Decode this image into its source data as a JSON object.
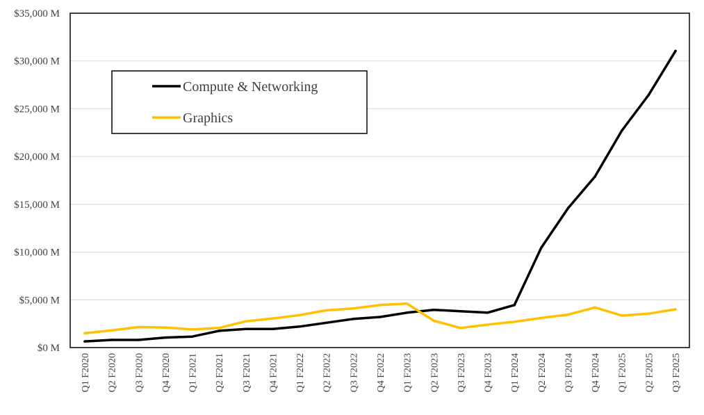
{
  "chart_data": {
    "type": "line",
    "title": "",
    "xlabel": "",
    "ylabel": "",
    "ylim": [
      0,
      35000
    ],
    "y_ticks": [
      0,
      5000,
      10000,
      15000,
      20000,
      25000,
      30000,
      35000
    ],
    "y_tick_labels": [
      "$0 M",
      "$5,000 M",
      "$10,000 M",
      "$15,000 M",
      "$20,000 M",
      "$25,000 M",
      "$30,000 M",
      "$35,000 M"
    ],
    "grid": "horizontal",
    "legend_position": "top-left",
    "categories": [
      "Q1 F2020",
      "Q2 F2020",
      "Q3 F2020",
      "Q4 F2020",
      "Q1 F2021",
      "Q2 F2021",
      "Q3 F2021",
      "Q4 F2021",
      "Q1 F2022",
      "Q2 F2022",
      "Q3 F2022",
      "Q4 F2022",
      "Q1 F2023",
      "Q2 F2023",
      "Q3 F2023",
      "Q4 F2023",
      "Q1 F2024",
      "Q2 F2024",
      "Q3 F2024",
      "Q4 F2024",
      "Q1 F2025",
      "Q2 F2025",
      "Q3 F2025"
    ],
    "series": [
      {
        "name": "Compute & Networking",
        "color": "#000000",
        "values": [
          650,
          800,
          800,
          1050,
          1150,
          1750,
          1950,
          1950,
          2200,
          2600,
          3000,
          3200,
          3650,
          3950,
          3800,
          3650,
          4450,
          10450,
          14600,
          17900,
          22700,
          26450,
          31050
        ]
      },
      {
        "name": "Graphics",
        "color": "#ffc000",
        "values": [
          1500,
          1800,
          2150,
          2100,
          1900,
          2050,
          2750,
          3050,
          3400,
          3900,
          4100,
          4450,
          4600,
          2800,
          2050,
          2400,
          2700,
          3100,
          3450,
          4200,
          3350,
          3550,
          4000
        ]
      }
    ]
  }
}
